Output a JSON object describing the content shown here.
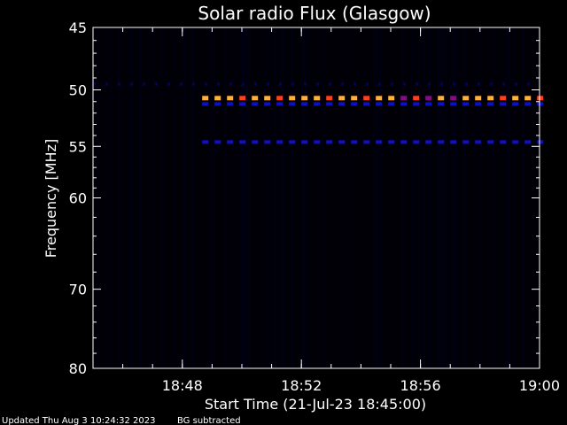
{
  "chart_data": {
    "type": "heatmap",
    "title": "Solar radio Flux (Glasgow)",
    "xlabel": "Start Time (21-Jul-23 18:45:00)",
    "ylabel": "Frequency [MHz]",
    "x_unit": "minutes",
    "xlim": [
      "18:45",
      "19:00"
    ],
    "ylim": [
      45,
      80
    ],
    "y_scale": "log",
    "x_ticks": [
      "18:48",
      "18:52",
      "18:56",
      "19:00"
    ],
    "y_ticks": [
      45,
      50,
      55,
      60,
      70,
      80
    ],
    "grid": false,
    "background_color": "#000000",
    "colors": {
      "strong": "#ffb040",
      "strong_alt": "#ff4020",
      "medium": "#801080",
      "weak": "#1010c0",
      "faint": "#000060"
    },
    "bands": [
      {
        "frequency_mhz": 49.5,
        "start": "18:45",
        "end": "19:00",
        "intensity": "faint"
      },
      {
        "frequency_mhz": 50.7,
        "start": "18:48:40",
        "end": "19:00",
        "intensity": "strong"
      },
      {
        "frequency_mhz": 51.2,
        "start": "18:48:40",
        "end": "19:00",
        "intensity": "weak"
      },
      {
        "frequency_mhz": 54.6,
        "start": "18:48:40",
        "end": "19:00",
        "intensity": "weak"
      }
    ]
  },
  "footer": {
    "updated": "Updated Thu Aug  3 10:24:32 2023",
    "note": "BG subtracted"
  }
}
